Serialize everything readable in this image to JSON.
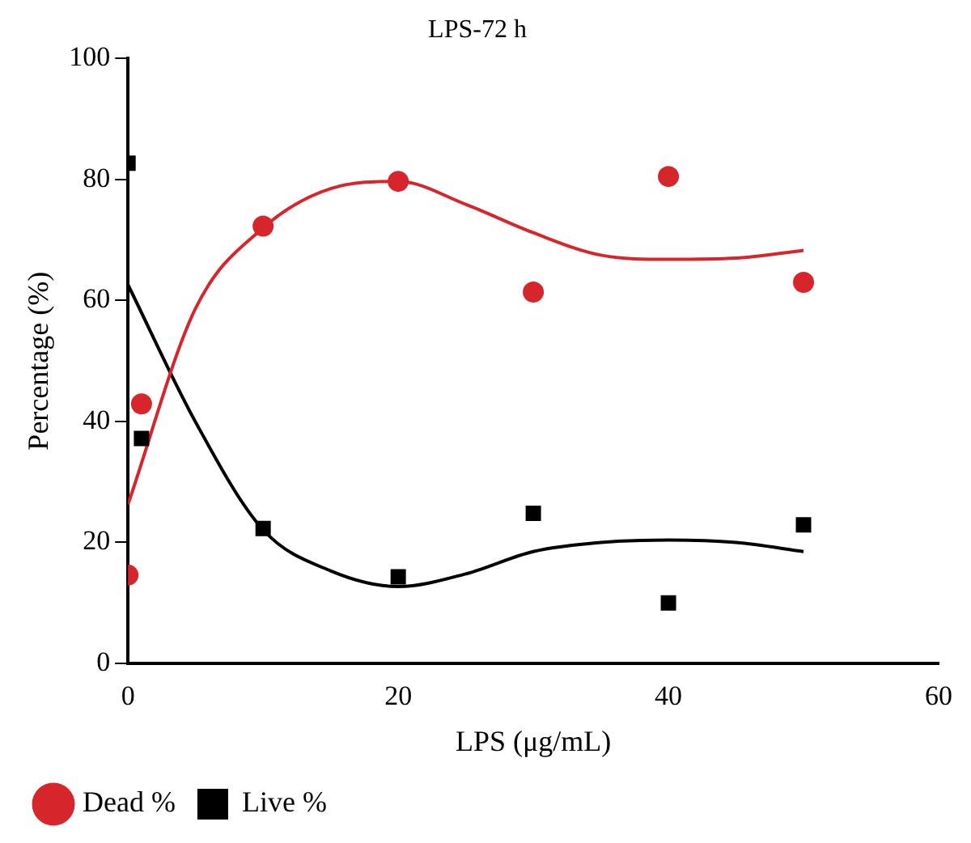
{
  "chart_data": {
    "type": "scatter",
    "title": "LPS-72 h",
    "xlabel": "LPS (μg/mL)",
    "ylabel": "Percentage (%)",
    "xlim": [
      0,
      60
    ],
    "xticks": [
      0,
      20,
      40,
      60
    ],
    "ylim": [
      0,
      100
    ],
    "yticks": [
      0,
      20,
      40,
      60,
      80,
      100
    ],
    "grid": false,
    "legend": "bottom left",
    "series": [
      {
        "name": "Dead %",
        "color": "#d7262b",
        "marker": "circle",
        "x": [
          0,
          1,
          10,
          20,
          30,
          40,
          50
        ],
        "values": [
          14.6,
          42.9,
          72.3,
          79.7,
          61.4,
          80.5,
          63
        ]
      },
      {
        "name": "Live %",
        "color": "#000000",
        "marker": "square",
        "x": [
          0,
          1,
          10,
          20,
          30,
          40,
          50
        ],
        "values": [
          82.7,
          37.2,
          22.3,
          14.3,
          24.8,
          10,
          22.9
        ]
      },
      {
        "type": "line",
        "color": "#d7262b",
        "marker": "none",
        "x": [
          0,
          5,
          10,
          15,
          20,
          25,
          30,
          35,
          40,
          45,
          50
        ],
        "values": [
          26.3,
          58.7,
          72,
          78.5,
          79.7,
          75.9,
          71.2,
          67.5,
          66.8,
          67,
          68.3
        ]
      },
      {
        "type": "line",
        "color": "#000000",
        "marker": "none",
        "x": [
          0,
          5,
          10,
          15,
          20,
          25,
          30,
          35,
          40,
          45,
          50
        ],
        "values": [
          62.6,
          39.9,
          22.1,
          15.3,
          12.7,
          14.8,
          18.5,
          20,
          20.4,
          20,
          18.5
        ]
      }
    ]
  }
}
